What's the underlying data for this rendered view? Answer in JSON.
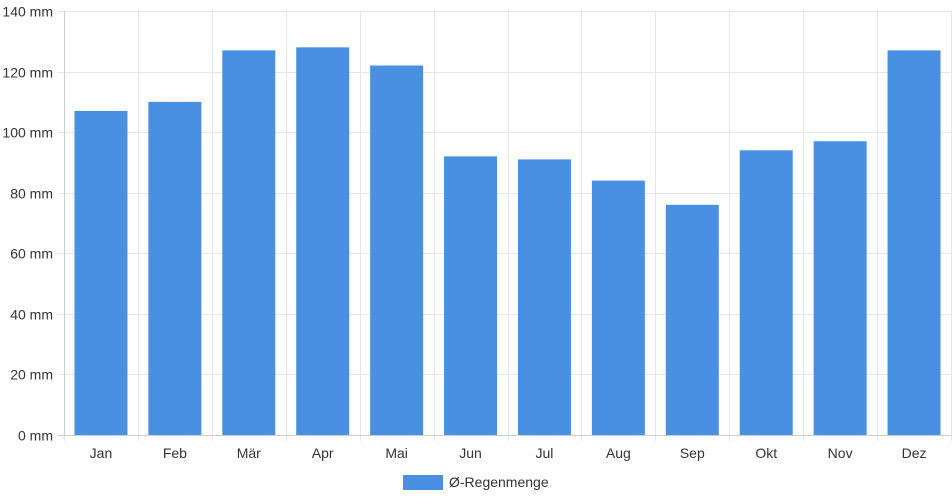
{
  "chart_data": {
    "type": "bar",
    "categories": [
      "Jan",
      "Feb",
      "Mär",
      "Apr",
      "Mai",
      "Jun",
      "Jul",
      "Aug",
      "Sep",
      "Okt",
      "Nov",
      "Dez"
    ],
    "series": [
      {
        "name": "Ø-Regenmenge",
        "values": [
          107,
          110,
          127,
          128,
          122,
          92,
          91,
          84,
          76,
          94,
          97,
          127
        ],
        "color": "#4a90e2"
      }
    ],
    "ylim": [
      0,
      140
    ],
    "yticks": [
      0,
      20,
      40,
      60,
      80,
      100,
      120,
      140
    ],
    "y_unit": "mm",
    "grid": true,
    "legend_position": "bottom"
  },
  "colors": {
    "grid": "#e6e6e6",
    "axis": "#cccccc",
    "text": "#333333"
  }
}
